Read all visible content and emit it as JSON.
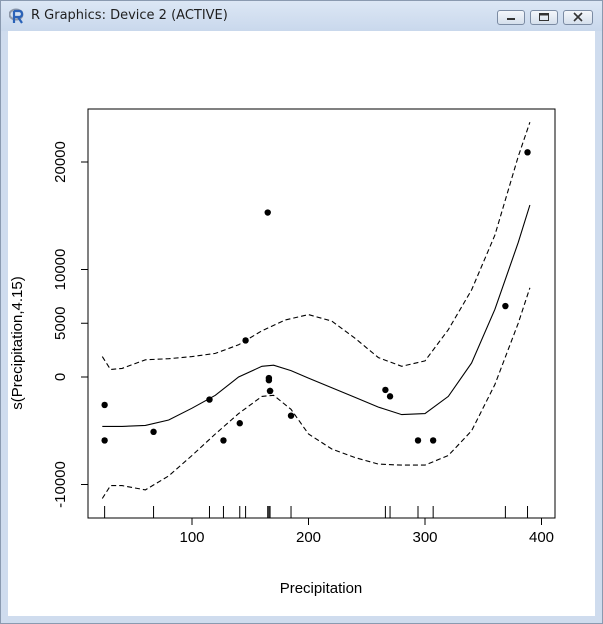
{
  "window": {
    "title": "R Graphics: Device 2 (ACTIVE)",
    "icons": {
      "app": "r-logo-icon",
      "minimize": "minimize-icon",
      "maximize": "maximize-icon",
      "close": "close-icon"
    }
  },
  "chart_data": {
    "type": "line",
    "xlabel": "Precipitation",
    "ylabel": "s(Precipitation,4.15)",
    "xlim": [
      20,
      400
    ],
    "ylim": [
      -12500,
      25000
    ],
    "x_ticks": [
      100,
      200,
      300,
      400
    ],
    "y_ticks": [
      -10000,
      0,
      5000,
      10000,
      20000
    ],
    "x_tick_labels": [
      "100",
      "200",
      "300",
      "400"
    ],
    "y_tick_labels": [
      "-10000",
      "0",
      "5000",
      "10000",
      "20000"
    ],
    "grid": false,
    "series": [
      {
        "style": "solid",
        "x": [
          23,
          40,
          60,
          80,
          100,
          120,
          140,
          160,
          170,
          185,
          200,
          220,
          240,
          260,
          280,
          300,
          320,
          340,
          360,
          380,
          390
        ],
        "y": [
          -4600,
          -4600,
          -4500,
          -4000,
          -2900,
          -1700,
          0,
          1000,
          1100,
          600,
          -100,
          -1000,
          -1900,
          -2800,
          -3500,
          -3400,
          -1800,
          1300,
          6300,
          12500,
          16000
        ]
      },
      {
        "style": "dashed",
        "x": [
          23,
          30,
          40,
          60,
          80,
          100,
          120,
          140,
          160,
          180,
          200,
          220,
          240,
          260,
          280,
          300,
          320,
          340,
          360,
          380,
          390
        ],
        "y": [
          1900,
          700,
          800,
          1600,
          1700,
          1900,
          2200,
          3000,
          4300,
          5300,
          5800,
          5200,
          3600,
          1800,
          1000,
          1500,
          4400,
          8100,
          13200,
          20500,
          23700
        ]
      },
      {
        "style": "dashed",
        "x": [
          23,
          30,
          40,
          60,
          80,
          100,
          120,
          140,
          160,
          170,
          185,
          200,
          220,
          240,
          260,
          280,
          300,
          320,
          340,
          360,
          380,
          390
        ],
        "y": [
          -11300,
          -10100,
          -10100,
          -10500,
          -9200,
          -7300,
          -5300,
          -3400,
          -1800,
          -1700,
          -3000,
          -5300,
          -6700,
          -7500,
          -8100,
          -8200,
          -8200,
          -7300,
          -5000,
          -700,
          5000,
          8300
        ]
      }
    ],
    "points": {
      "x": [
        25,
        25,
        67,
        115,
        127,
        141,
        146,
        165,
        166,
        166,
        167,
        167,
        185,
        266,
        270,
        294,
        307,
        369,
        388
      ],
      "y": [
        -2600,
        -5900,
        -5100,
        -2100,
        -5900,
        -4300,
        3400,
        15300,
        -100,
        -300,
        -1300,
        -1300,
        -3600,
        -1200,
        -1800,
        -5900,
        -5900,
        6600,
        20900
      ]
    },
    "rug": [
      25,
      67,
      115,
      127,
      141,
      146,
      165,
      166,
      167,
      185,
      266,
      270,
      294,
      307,
      369,
      388
    ]
  }
}
